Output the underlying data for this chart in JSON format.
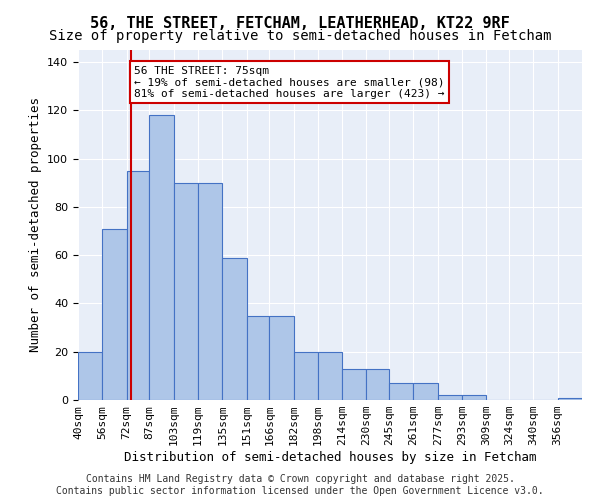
{
  "title": "56, THE STREET, FETCHAM, LEATHERHEAD, KT22 9RF",
  "subtitle": "Size of property relative to semi-detached houses in Fetcham",
  "xlabel": "Distribution of semi-detached houses by size in Fetcham",
  "ylabel": "Number of semi-detached properties",
  "bin_labels": [
    "40sqm",
    "56sqm",
    "72sqm",
    "87sqm",
    "103sqm",
    "119sqm",
    "135sqm",
    "151sqm",
    "166sqm",
    "182sqm",
    "198sqm",
    "214sqm",
    "230sqm",
    "245sqm",
    "261sqm",
    "277sqm",
    "293sqm",
    "309sqm",
    "324sqm",
    "340sqm",
    "356sqm"
  ],
  "bin_edges": [
    40,
    56,
    72,
    87,
    103,
    119,
    135,
    151,
    166,
    182,
    198,
    214,
    230,
    245,
    261,
    277,
    293,
    309,
    324,
    340,
    356
  ],
  "counts": [
    20,
    71,
    95,
    118,
    90,
    90,
    59,
    35,
    35,
    20,
    20,
    13,
    13,
    7,
    7,
    2,
    2,
    0,
    0,
    0,
    1
  ],
  "bar_color": "#aec6e8",
  "bar_edge_color": "#4472c4",
  "property_size": 75,
  "marker_line_color": "#cc0000",
  "annotation_text": "56 THE STREET: 75sqm\n← 19% of semi-detached houses are smaller (98)\n81% of semi-detached houses are larger (423) →",
  "annotation_box_color": "#ffffff",
  "annotation_box_edge_color": "#cc0000",
  "ylim": [
    0,
    145
  ],
  "background_color": "#e8eef8",
  "footer_text": "Contains HM Land Registry data © Crown copyright and database right 2025.\nContains public sector information licensed under the Open Government Licence v3.0.",
  "title_fontsize": 11,
  "subtitle_fontsize": 10,
  "xlabel_fontsize": 9,
  "ylabel_fontsize": 9,
  "tick_fontsize": 8,
  "annotation_fontsize": 8,
  "footer_fontsize": 7
}
